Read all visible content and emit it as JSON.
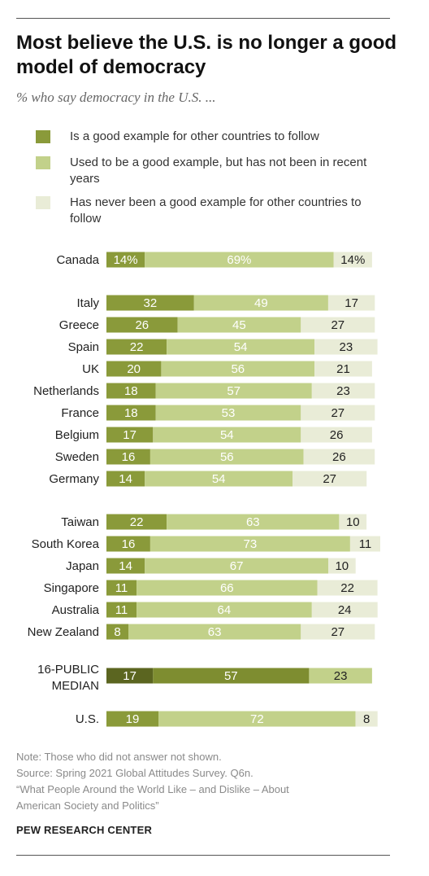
{
  "title": "Most believe the U.S. is no longer a good model of democracy",
  "subtitle": "% who say democracy in the U.S. ...",
  "colors": {
    "good_example": "#8a9a3a",
    "used_to_be": "#c2d18a",
    "never": "#e9ecd7",
    "median_good_example": "#5b6520",
    "median_used_to_be": "#7e8d30",
    "median_never": "#c2d18a"
  },
  "chart_data": {
    "type": "bar",
    "stacked": true,
    "orientation": "horizontal",
    "legend": [
      "Is a good example for other countries to follow",
      "Used to be a good example, but has not been in recent years",
      "Has never been a good example for other countries to follow"
    ],
    "rows": [
      {
        "label": "Canada",
        "values": [
          14,
          69,
          14
        ],
        "value_labels": [
          "14%",
          "69%",
          "14%"
        ]
      },
      {
        "label": "Italy",
        "values": [
          32,
          49,
          17
        ],
        "value_labels": [
          "32",
          "49",
          "17"
        ]
      },
      {
        "label": "Greece",
        "values": [
          26,
          45,
          27
        ],
        "value_labels": [
          "26",
          "45",
          "27"
        ]
      },
      {
        "label": "Spain",
        "values": [
          22,
          54,
          23
        ],
        "value_labels": [
          "22",
          "54",
          "23"
        ]
      },
      {
        "label": "UK",
        "values": [
          20,
          56,
          21
        ],
        "value_labels": [
          "20",
          "56",
          "21"
        ]
      },
      {
        "label": "Netherlands",
        "values": [
          18,
          57,
          23
        ],
        "value_labels": [
          "18",
          "57",
          "23"
        ]
      },
      {
        "label": "France",
        "values": [
          18,
          53,
          27
        ],
        "value_labels": [
          "18",
          "53",
          "27"
        ]
      },
      {
        "label": "Belgium",
        "values": [
          17,
          54,
          26
        ],
        "value_labels": [
          "17",
          "54",
          "26"
        ]
      },
      {
        "label": "Sweden",
        "values": [
          16,
          56,
          26
        ],
        "value_labels": [
          "16",
          "56",
          "26"
        ]
      },
      {
        "label": "Germany",
        "values": [
          14,
          54,
          27
        ],
        "value_labels": [
          "14",
          "54",
          "27"
        ]
      },
      {
        "label": "Taiwan",
        "values": [
          22,
          63,
          10
        ],
        "value_labels": [
          "22",
          "63",
          "10"
        ]
      },
      {
        "label": "South Korea",
        "values": [
          16,
          73,
          11
        ],
        "value_labels": [
          "16",
          "73",
          "11"
        ]
      },
      {
        "label": "Japan",
        "values": [
          14,
          67,
          10
        ],
        "value_labels": [
          "14",
          "67",
          "10"
        ]
      },
      {
        "label": "Singapore",
        "values": [
          11,
          66,
          22
        ],
        "value_labels": [
          "11",
          "66",
          "22"
        ]
      },
      {
        "label": "Australia",
        "values": [
          11,
          64,
          24
        ],
        "value_labels": [
          "11",
          "64",
          "24"
        ]
      },
      {
        "label": "New Zealand",
        "values": [
          8,
          63,
          27
        ],
        "value_labels": [
          "8",
          "63",
          "27"
        ]
      },
      {
        "label": "16-PUBLIC MEDIAN",
        "label_lines": [
          "16-PUBLIC",
          "MEDIAN"
        ],
        "values": [
          17,
          57,
          23
        ],
        "value_labels": [
          "17",
          "57",
          "23"
        ],
        "highlight": true
      },
      {
        "label": "U.S.",
        "values": [
          19,
          72,
          8
        ],
        "value_labels": [
          "19",
          "72",
          "8"
        ]
      }
    ]
  },
  "footer": {
    "note": "Note: Those who did not answer not shown.",
    "source": "Source: Spring 2021 Global Attitudes Survey. Q6n.",
    "report_line1": "“What People Around the World Like – and Dislike – About",
    "report_line2": "American Society and Politics”",
    "org": "PEW RESEARCH CENTER"
  }
}
